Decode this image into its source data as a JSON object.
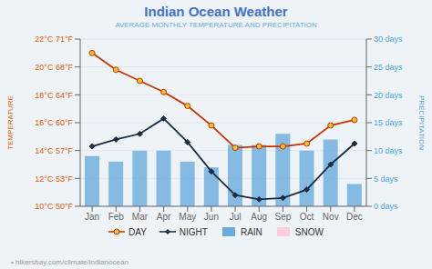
{
  "chart_data": {
    "type": "line",
    "title": "Indian Ocean Weather",
    "subtitle": "AVERAGE MONTHLY TEMPERATURE AND PRECIPITATION",
    "y_label": "TEMPERATURE",
    "y2_label": "PRECIPITATION",
    "categories": [
      "Jan",
      "Feb",
      "Mar",
      "Apr",
      "May",
      "Jun",
      "Jul",
      "Aug",
      "Sep",
      "Oct",
      "Nov",
      "Dec"
    ],
    "series": [
      {
        "name": "DAY",
        "type": "line",
        "color": "#cc3300",
        "marker": "circle",
        "values": [
          21.0,
          19.8,
          19.0,
          18.2,
          17.2,
          15.8,
          14.2,
          14.3,
          14.3,
          14.5,
          15.8,
          16.2
        ]
      },
      {
        "name": "NIGHT",
        "type": "line",
        "color": "#1c2d40",
        "marker": "diamond",
        "values": [
          14.3,
          14.8,
          15.2,
          16.3,
          14.6,
          12.5,
          10.8,
          10.5,
          10.6,
          11.2,
          13.0,
          14.5
        ]
      },
      {
        "name": "RAIN",
        "type": "bar",
        "axis": "y2",
        "color": "#6aacdc",
        "values": [
          9,
          8,
          10,
          10,
          8,
          7,
          11,
          11,
          13,
          10,
          12,
          4
        ]
      },
      {
        "name": "SNOW",
        "type": "bar",
        "axis": "y2",
        "color": "#ffccdd",
        "values": [
          null,
          null,
          null,
          null,
          null,
          null,
          null,
          null,
          null,
          null,
          null,
          null
        ]
      }
    ],
    "ylim": [
      10,
      22
    ],
    "yticks": [
      {
        "value": 10,
        "label": "10°C 50°F"
      },
      {
        "value": 12,
        "label": "12°C 53°F"
      },
      {
        "value": 14,
        "label": "14°C 57°F"
      },
      {
        "value": 16,
        "label": "16°C 60°F"
      },
      {
        "value": 18,
        "label": "18°C 64°F"
      },
      {
        "value": 20,
        "label": "20°C 68°F"
      },
      {
        "value": 22,
        "label": "22°C 71°F"
      }
    ],
    "y2lim": [
      0,
      30
    ],
    "y2ticks": [
      {
        "value": 0,
        "label": "0 days"
      },
      {
        "value": 5,
        "label": "5 days"
      },
      {
        "value": 10,
        "label": "10 days"
      },
      {
        "value": 15,
        "label": "15 days"
      },
      {
        "value": 20,
        "label": "20 days"
      },
      {
        "value": 25,
        "label": "25 days"
      },
      {
        "value": 30,
        "label": "30 days"
      }
    ],
    "grid": true,
    "legend": "bottom",
    "annotations": [
      "• hikersbay.com/climate/indianocean"
    ]
  }
}
